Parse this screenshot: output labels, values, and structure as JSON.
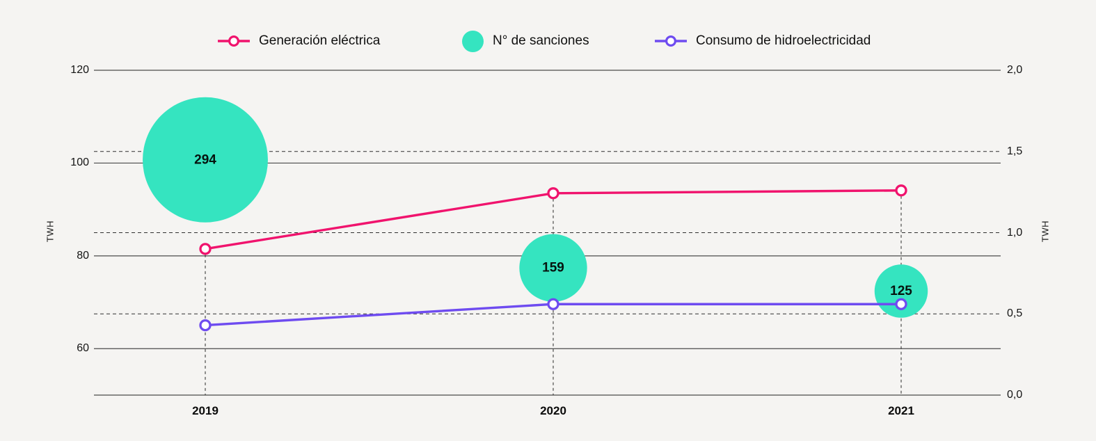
{
  "page": {
    "background": "#F5F4F2"
  },
  "legend": {
    "items": [
      {
        "label": "Generación eléctrica",
        "color": "#F0136D",
        "marker": "line-circle"
      },
      {
        "label": "N° de sanciones",
        "color": "#35E4C0",
        "marker": "circle"
      },
      {
        "label": "Consumo de hidroelectricidad",
        "color": "#6E4BF0",
        "marker": "line-circle"
      }
    ]
  },
  "chart_data": {
    "type": "line",
    "subtype": "dual-axis line + bubble",
    "x": [
      "2019",
      "2020",
      "2021"
    ],
    "series": [
      {
        "name": "Generación eléctrica",
        "type": "line",
        "axis": "left",
        "color": "#F0136D",
        "values": [
          81.5,
          93.5,
          94.1
        ]
      },
      {
        "name": "Consumo de hidroelectricidad",
        "type": "line",
        "axis": "right",
        "color": "#6E4BF0",
        "values": [
          0.43,
          0.56,
          0.56
        ]
      },
      {
        "name": "N° de sanciones",
        "type": "bubble",
        "axis": "left",
        "color": "#35E4C0",
        "values": [
          294,
          159,
          125
        ],
        "labels": [
          "294",
          "159",
          "125"
        ],
        "bubble_center_y_left_axis": [
          100.7,
          77.4,
          72.4
        ]
      }
    ],
    "left_axis": {
      "label": "TWH",
      "ticks": [
        "120",
        "100",
        "80",
        "60"
      ],
      "tick_values": [
        120,
        100,
        80,
        60
      ],
      "range": [
        50,
        120
      ]
    },
    "right_axis": {
      "label": "TWH",
      "ticks": [
        "2,0",
        "1,5",
        "1,0",
        "0,5",
        "0,0"
      ],
      "tick_values": [
        2.0,
        1.5,
        1.0,
        0.5,
        0.0
      ],
      "range": [
        0,
        2
      ],
      "dashed_gridlines": [
        1.5,
        1.0,
        0.5
      ]
    },
    "grid": "horizontal solid at left ticks, horizontal dashed at right half-ticks, vertical dashed drop lines at each year",
    "legend_position": "top"
  }
}
